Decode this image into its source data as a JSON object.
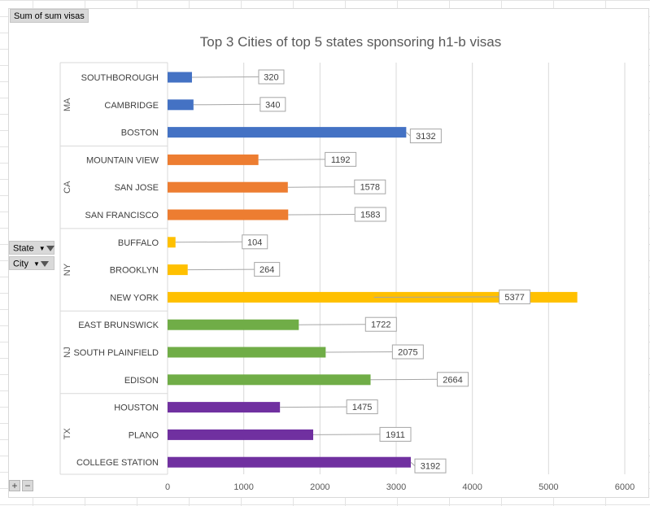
{
  "field_buttons": {
    "value_field": "Sum of sum visas",
    "state_field": "State",
    "city_field": "City"
  },
  "zoom": {
    "expand": "+",
    "collapse": "−"
  },
  "colors": {
    "MA": "#4472c4",
    "CA": "#ed7d31",
    "NY": "#ffc000",
    "NJ": "#70ad47",
    "TX": "#7030a0"
  },
  "chart_data": {
    "type": "bar",
    "orientation": "horizontal",
    "title": "Top 3 Cities of top 5 states sponsoring h1-b visas",
    "xlabel": "",
    "ylabel": "",
    "xlim": [
      0,
      6000
    ],
    "xticks": [
      "0",
      "1000",
      "2000",
      "3000",
      "4000",
      "5000",
      "6000"
    ],
    "grid": true,
    "legend": "none",
    "groups": [
      {
        "state": "MA",
        "cities": [
          {
            "city": "SOUTHBOROUGH",
            "value": 320
          },
          {
            "city": "CAMBRIDGE",
            "value": 340
          },
          {
            "city": "BOSTON",
            "value": 3132
          }
        ]
      },
      {
        "state": "CA",
        "cities": [
          {
            "city": "MOUNTAIN VIEW",
            "value": 1192
          },
          {
            "city": "SAN JOSE",
            "value": 1578
          },
          {
            "city": "SAN FRANCISCO",
            "value": 1583
          }
        ]
      },
      {
        "state": "NY",
        "cities": [
          {
            "city": "BUFFALO",
            "value": 104
          },
          {
            "city": "BROOKLYN",
            "value": 264
          },
          {
            "city": "NEW YORK",
            "value": 5377
          }
        ]
      },
      {
        "state": "NJ",
        "cities": [
          {
            "city": "EAST BRUNSWICK",
            "value": 1722
          },
          {
            "city": "SOUTH PLAINFIELD",
            "value": 2075
          },
          {
            "city": "EDISON",
            "value": 2664
          }
        ]
      },
      {
        "state": "TX",
        "cities": [
          {
            "city": "HOUSTON",
            "value": 1475
          },
          {
            "city": "PLANO",
            "value": 1911
          },
          {
            "city": "COLLEGE STATION",
            "value": 3192
          }
        ]
      }
    ]
  }
}
